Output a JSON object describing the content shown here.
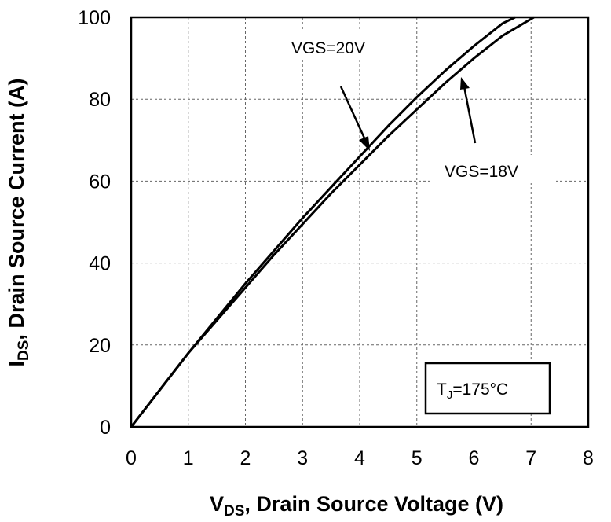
{
  "chart_data": {
    "type": "line",
    "title": "",
    "xlabel_main": "V",
    "xlabel_sub": "DS",
    "xlabel_rest": ", Drain Source Voltage (V)",
    "ylabel_main": "I",
    "ylabel_sub": "DS",
    "ylabel_rest": ", Drain  Source Current (A)",
    "xlim": [
      0,
      8
    ],
    "ylim": [
      0,
      100
    ],
    "xticks": [
      0,
      1,
      2,
      3,
      4,
      5,
      6,
      7,
      8
    ],
    "yticks": [
      0,
      20,
      40,
      60,
      80,
      100
    ],
    "grid": true,
    "series": [
      {
        "name": "VGS=20V",
        "x": [
          0,
          0.5,
          1,
          1.5,
          2,
          2.5,
          3,
          3.5,
          4,
          4.5,
          5,
          5.5,
          6,
          6.5,
          6.72
        ],
        "y": [
          0,
          9,
          18,
          26.5,
          35,
          43,
          51,
          58.5,
          66,
          73.5,
          80.5,
          87,
          93,
          98.5,
          100
        ]
      },
      {
        "name": "VGS=18V",
        "x": [
          0,
          0.5,
          1,
          1.5,
          2,
          2.5,
          3,
          3.5,
          4,
          4.5,
          5,
          5.5,
          6,
          6.5,
          7.05
        ],
        "y": [
          0,
          9,
          18,
          26,
          34,
          42,
          49.5,
          57,
          64,
          71,
          77.5,
          84,
          90,
          95.5,
          100
        ]
      }
    ],
    "annotations": {
      "vgs20_label": "VGS=20V",
      "vgs18_label": "VGS=18V",
      "tj_main": "T",
      "tj_sub": "J",
      "tj_rest": "=175°C"
    }
  }
}
